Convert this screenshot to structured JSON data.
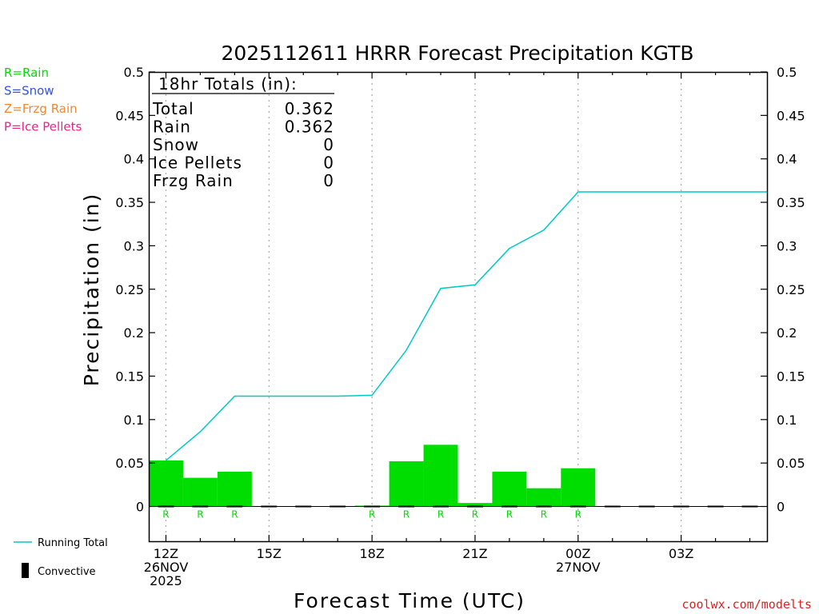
{
  "chart_data": {
    "type": "bar",
    "title": "2025112611 HRRR Forecast Precipitation KGTB",
    "xlabel": "Forecast Time (UTC)",
    "ylabel": "Precipitation (in)",
    "ylim": [
      -0.04,
      0.5
    ],
    "y_ticks": [
      "0",
      "0.05",
      "0.1",
      "0.15",
      "0.2",
      "0.25",
      "0.3",
      "0.35",
      "0.4",
      "0.45",
      "0.5"
    ],
    "xlim_hours": [
      -0.5,
      17.5
    ],
    "x_ticks": [
      {
        "hour": 0,
        "lines": [
          "12Z",
          "26NOV",
          "2025"
        ]
      },
      {
        "hour": 3,
        "lines": [
          "15Z"
        ]
      },
      {
        "hour": 6,
        "lines": [
          "18Z"
        ]
      },
      {
        "hour": 9,
        "lines": [
          "21Z"
        ]
      },
      {
        "hour": 12,
        "lines": [
          "00Z",
          "27NOV"
        ]
      },
      {
        "hour": 15,
        "lines": [
          "03Z"
        ]
      }
    ],
    "grid": "vertical dotted at labeled times",
    "hourly": {
      "hours": [
        0,
        1,
        2,
        3,
        4,
        5,
        6,
        7,
        8,
        9,
        10,
        11,
        12,
        13,
        14,
        15,
        16,
        17
      ],
      "values": [
        0.053,
        0.033,
        0.04,
        0.0,
        0.0,
        0.0,
        0.001,
        0.052,
        0.071,
        0.004,
        0.04,
        0.021,
        0.044,
        0.0,
        0.0,
        0.0,
        0.0,
        0.0
      ],
      "type_letters": [
        "R",
        "R",
        "R",
        "",
        "",
        "",
        "R",
        "R",
        "R",
        "R",
        "R",
        "R",
        "R",
        "",
        "",
        "",
        "",
        ""
      ]
    },
    "series": [
      {
        "name": "Running Total",
        "x": [
          0,
          1,
          2,
          3,
          4,
          5,
          6,
          7,
          8,
          9,
          10,
          11,
          12,
          13,
          14,
          15,
          16,
          17,
          17.5
        ],
        "values": [
          0.053,
          0.086,
          0.127,
          0.127,
          0.127,
          0.127,
          0.128,
          0.18,
          0.251,
          0.255,
          0.297,
          0.318,
          0.362,
          0.362,
          0.362,
          0.362,
          0.362,
          0.362,
          0.362
        ]
      }
    ],
    "totals_box": {
      "header": "18hr Totals (in):",
      "rows": [
        {
          "label": "Total",
          "value": "0.362"
        },
        {
          "label": "Rain",
          "value": "0.362"
        },
        {
          "label": "Snow",
          "value": "0"
        },
        {
          "label": "Ice Pellets",
          "value": "0"
        },
        {
          "label": "Frzg Rain",
          "value": "0"
        }
      ]
    },
    "type_legend": [
      {
        "text": "R=Rain",
        "color": "#00dd00"
      },
      {
        "text": "S=Snow",
        "color": "#3355dd"
      },
      {
        "text": "Z=Frzg Rain",
        "color": "#ee8833"
      },
      {
        "text": "P=Ice Pellets",
        "color": "#ee2288"
      }
    ],
    "bottom_legend": {
      "running_total": "Running Total",
      "convective": "Convective"
    },
    "credit": "coolwx.com/modelts",
    "colors": {
      "bar": "#00dd00",
      "running_total": "#00c8c8",
      "convective": "#000000",
      "grid": "#aaaaaa",
      "credit": "#dd2222",
      "letter": "#00dd00"
    }
  }
}
